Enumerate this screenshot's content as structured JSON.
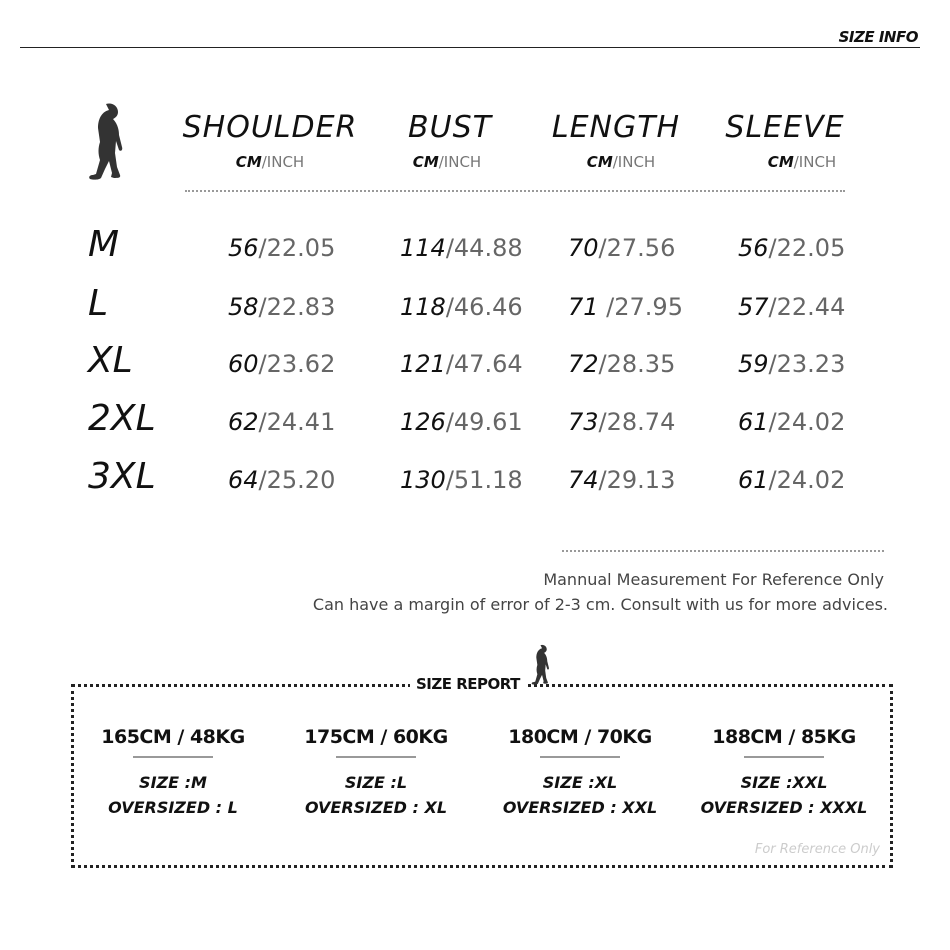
{
  "header": {
    "title": "SIZE INFO"
  },
  "table": {
    "columns": [
      {
        "label": "SHOULDER",
        "unit_cm": "CM",
        "unit_inch": "/INCH"
      },
      {
        "label": "BUST",
        "unit_cm": "CM",
        "unit_inch": "/INCH"
      },
      {
        "label": "LENGTH",
        "unit_cm": "CM",
        "unit_inch": "/INCH"
      },
      {
        "label": "SLEEVE",
        "unit_cm": "CM",
        "unit_inch": "/INCH"
      }
    ],
    "rows": [
      {
        "size": "M",
        "cells": [
          {
            "cm": "56",
            "inch": "/22.05"
          },
          {
            "cm": "114",
            "inch": "/44.88"
          },
          {
            "cm": "70",
            "inch": "/27.56"
          },
          {
            "cm": "56",
            "inch": "/22.05"
          }
        ]
      },
      {
        "size": "L",
        "cells": [
          {
            "cm": "58",
            "inch": "/22.83"
          },
          {
            "cm": "118",
            "inch": "/46.46"
          },
          {
            "cm": "71",
            "inch": " /27.95"
          },
          {
            "cm": "57",
            "inch": "/22.44"
          }
        ]
      },
      {
        "size": "XL",
        "cells": [
          {
            "cm": "60",
            "inch": "/23.62"
          },
          {
            "cm": "121",
            "inch": "/47.64"
          },
          {
            "cm": "72",
            "inch": "/28.35"
          },
          {
            "cm": "59",
            "inch": "/23.23"
          }
        ]
      },
      {
        "size": "2XL",
        "cells": [
          {
            "cm": "62",
            "inch": "/24.41"
          },
          {
            "cm": "126",
            "inch": "/49.61"
          },
          {
            "cm": "73",
            "inch": "/28.74"
          },
          {
            "cm": "61",
            "inch": "/24.02"
          }
        ]
      },
      {
        "size": "3XL",
        "cells": [
          {
            "cm": "64",
            "inch": "/25.20"
          },
          {
            "cm": "130",
            "inch": "/51.18"
          },
          {
            "cm": "74",
            "inch": "/29.13"
          },
          {
            "cm": "61",
            "inch": "/24.02"
          }
        ]
      }
    ]
  },
  "notes": {
    "line1": "Mannual  Measurement For Reference Only",
    "line2": "Can have a margin of error of 2-3 cm.  Consult with us for more advices."
  },
  "report": {
    "title": "SIZE REPORT",
    "items": [
      {
        "hw": "165CM / 48KG",
        "size": "SIZE  :M",
        "oversized": "OVERSIZED : L"
      },
      {
        "hw": "175CM / 60KG",
        "size": "SIZE  :L",
        "oversized": "OVERSIZED : XL"
      },
      {
        "hw": "180CM / 70KG",
        "size": "SIZE  :XL",
        "oversized": "OVERSIZED : XXL"
      },
      {
        "hw": "188CM / 85KG",
        "size": "SIZE  :XXL",
        "oversized": "OVERSIZED : XXXL"
      }
    ],
    "footnote": "For Reference Only"
  },
  "icons": {
    "figure": "hunched-figure-icon"
  }
}
